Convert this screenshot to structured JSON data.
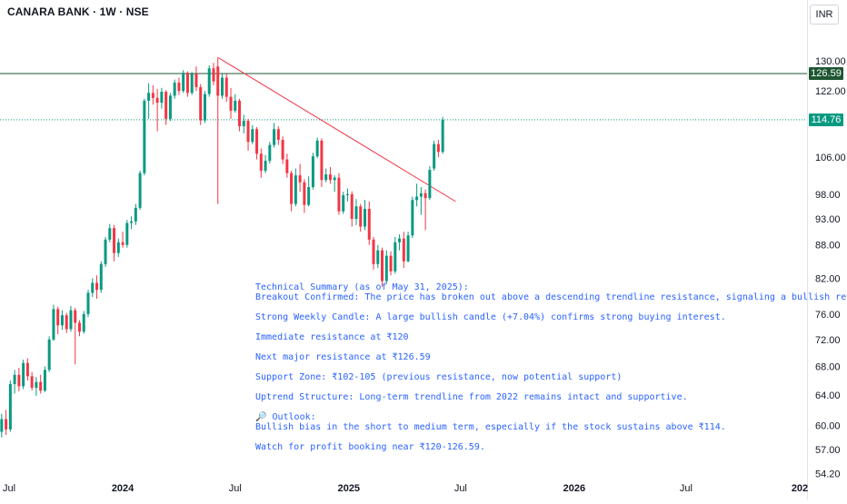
{
  "header": {
    "title": "CANARA BANK · 1W · NSE",
    "currency": "INR"
  },
  "price_tags": {
    "resistance": "126.59",
    "last": "114.76",
    "resistance_color": "#1e5631",
    "last_color": "#089981"
  },
  "colors": {
    "up": "#089981",
    "down": "#f23645",
    "trendline": "#f23645",
    "resistance_line": "#1e5631",
    "annotation_text": "#2962ff"
  },
  "annotation": {
    "title": "Technical Summary (as of May 31, 2025):",
    "breakout": "Breakout Confirmed: The price has broken out above a descending trendline resistance, signaling a bullish reversal.",
    "candle": "Strong Weekly Candle: A large bullish candle (+7.04%) confirms strong buying interest.",
    "immediate": "Immediate resistance at ₹120",
    "major": "Next major resistance at ₹126.59",
    "support": "Support Zone: ₹102-105 (previous resistance, now potential support)",
    "uptrend": "Uptrend Structure: Long-term trendline from 2022 remains intact and supportive.",
    "outlook_icon": "magnifier-icon",
    "outlook_title": "🔎 Outlook:",
    "outlook": "Bullish bias in the short to medium term, especially if the stock sustains above ₹114.",
    "watch": "Watch for profit booking near ₹120-126.59."
  },
  "chart_data": {
    "type": "candlestick",
    "y_scale": "log",
    "ylim": [
      53.5,
      137
    ],
    "y_ticks": [
      "130.00",
      "122.00",
      "106.00",
      "98.00",
      "93.00",
      "88.00",
      "82.00",
      "76.00",
      "72.00",
      "68.00",
      "64.00",
      "60.00",
      "57.00",
      "54.20"
    ],
    "x_ticks": [
      {
        "label": "Jul",
        "date": "2023-07-01"
      },
      {
        "label": "2024",
        "date": "2024-01-01"
      },
      {
        "label": "Jul",
        "date": "2024-07-01"
      },
      {
        "label": "2025",
        "date": "2025-01-01"
      },
      {
        "label": "Jul",
        "date": "2025-07-01"
      },
      {
        "label": "2026",
        "date": "2026-01-01"
      },
      {
        "label": "Jul",
        "date": "2026-07-01"
      },
      {
        "label": "202",
        "date": "2027-01-01"
      }
    ],
    "resistance_level": 126.59,
    "last_price": 114.76,
    "trendline": {
      "start": {
        "date": "2024-06-03",
        "price": 131.0
      },
      "end": {
        "date": "2025-06-23",
        "price": 96.5
      }
    },
    "candles": [
      {
        "d": "2023-06-19",
        "o": 59.2,
        "h": 61.5,
        "l": 58.5,
        "c": 60.8
      },
      {
        "d": "2023-06-26",
        "o": 60.8,
        "h": 62.0,
        "l": 58.8,
        "c": 59.5
      },
      {
        "d": "2023-07-03",
        "o": 59.5,
        "h": 66.0,
        "l": 59.2,
        "c": 65.5
      },
      {
        "d": "2023-07-10",
        "o": 65.5,
        "h": 67.5,
        "l": 64.2,
        "c": 66.8
      },
      {
        "d": "2023-07-17",
        "o": 66.8,
        "h": 67.8,
        "l": 64.5,
        "c": 65.2
      },
      {
        "d": "2023-07-24",
        "o": 65.2,
        "h": 69.0,
        "l": 64.8,
        "c": 68.5
      },
      {
        "d": "2023-07-31",
        "o": 68.5,
        "h": 69.2,
        "l": 66.0,
        "c": 66.6
      },
      {
        "d": "2023-08-07",
        "o": 66.6,
        "h": 67.2,
        "l": 64.6,
        "c": 65.0
      },
      {
        "d": "2023-08-14",
        "o": 65.0,
        "h": 66.5,
        "l": 63.9,
        "c": 65.8
      },
      {
        "d": "2023-08-21",
        "o": 65.8,
        "h": 66.8,
        "l": 64.2,
        "c": 64.6
      },
      {
        "d": "2023-08-28",
        "o": 64.6,
        "h": 68.0,
        "l": 64.4,
        "c": 67.5
      },
      {
        "d": "2023-09-04",
        "o": 67.5,
        "h": 72.5,
        "l": 67.2,
        "c": 72.0
      },
      {
        "d": "2023-09-11",
        "o": 72.0,
        "h": 77.5,
        "l": 71.8,
        "c": 76.8
      },
      {
        "d": "2023-09-18",
        "o": 76.8,
        "h": 77.2,
        "l": 72.8,
        "c": 74.2
      },
      {
        "d": "2023-09-25",
        "o": 74.2,
        "h": 76.6,
        "l": 73.5,
        "c": 75.8
      },
      {
        "d": "2023-10-02",
        "o": 75.8,
        "h": 76.2,
        "l": 73.0,
        "c": 73.6
      },
      {
        "d": "2023-10-09",
        "o": 73.6,
        "h": 77.3,
        "l": 73.2,
        "c": 76.6
      },
      {
        "d": "2023-10-16",
        "o": 76.6,
        "h": 77.0,
        "l": 68.3,
        "c": 74.6
      },
      {
        "d": "2023-10-23",
        "o": 74.6,
        "h": 75.0,
        "l": 72.5,
        "c": 73.2
      },
      {
        "d": "2023-10-30",
        "o": 73.2,
        "h": 76.5,
        "l": 72.9,
        "c": 76.0
      },
      {
        "d": "2023-11-06",
        "o": 76.0,
        "h": 80.0,
        "l": 75.5,
        "c": 79.5
      },
      {
        "d": "2023-11-13",
        "o": 79.5,
        "h": 82.0,
        "l": 78.8,
        "c": 81.2
      },
      {
        "d": "2023-11-20",
        "o": 81.2,
        "h": 82.5,
        "l": 78.5,
        "c": 80.0
      },
      {
        "d": "2023-11-27",
        "o": 80.0,
        "h": 85.0,
        "l": 79.5,
        "c": 84.5
      },
      {
        "d": "2023-12-04",
        "o": 84.5,
        "h": 89.5,
        "l": 84.0,
        "c": 89.0
      },
      {
        "d": "2023-12-11",
        "o": 89.0,
        "h": 92.0,
        "l": 88.5,
        "c": 91.2
      },
      {
        "d": "2023-12-18",
        "o": 91.2,
        "h": 91.8,
        "l": 85.0,
        "c": 86.5
      },
      {
        "d": "2023-12-25",
        "o": 86.5,
        "h": 89.2,
        "l": 85.8,
        "c": 88.5
      },
      {
        "d": "2024-01-01",
        "o": 88.5,
        "h": 90.5,
        "l": 87.5,
        "c": 88.0
      },
      {
        "d": "2024-01-08",
        "o": 88.0,
        "h": 92.8,
        "l": 87.5,
        "c": 92.2
      },
      {
        "d": "2024-01-15",
        "o": 92.2,
        "h": 93.5,
        "l": 91.0,
        "c": 92.5
      },
      {
        "d": "2024-01-22",
        "o": 92.5,
        "h": 96.0,
        "l": 91.8,
        "c": 95.2
      },
      {
        "d": "2024-01-29",
        "o": 95.2,
        "h": 103.0,
        "l": 94.8,
        "c": 102.5
      },
      {
        "d": "2024-02-05",
        "o": 102.5,
        "h": 120.0,
        "l": 102.0,
        "c": 119.5
      },
      {
        "d": "2024-02-12",
        "o": 119.5,
        "h": 124.0,
        "l": 115.0,
        "c": 121.5
      },
      {
        "d": "2024-02-19",
        "o": 121.5,
        "h": 123.5,
        "l": 118.5,
        "c": 120.2
      },
      {
        "d": "2024-02-26",
        "o": 120.2,
        "h": 122.5,
        "l": 112.0,
        "c": 119.0
      },
      {
        "d": "2024-03-04",
        "o": 119.0,
        "h": 122.8,
        "l": 117.5,
        "c": 121.8
      },
      {
        "d": "2024-03-11",
        "o": 121.8,
        "h": 122.2,
        "l": 113.5,
        "c": 115.0
      },
      {
        "d": "2024-03-18",
        "o": 115.0,
        "h": 121.5,
        "l": 114.5,
        "c": 120.8
      },
      {
        "d": "2024-03-25",
        "o": 120.8,
        "h": 125.0,
        "l": 120.0,
        "c": 124.2
      },
      {
        "d": "2024-04-01",
        "o": 124.2,
        "h": 125.5,
        "l": 121.0,
        "c": 122.0
      },
      {
        "d": "2024-04-08",
        "o": 122.0,
        "h": 127.5,
        "l": 121.5,
        "c": 126.8
      },
      {
        "d": "2024-04-15",
        "o": 126.8,
        "h": 127.2,
        "l": 120.5,
        "c": 121.5
      },
      {
        "d": "2024-04-22",
        "o": 121.5,
        "h": 127.0,
        "l": 121.0,
        "c": 126.5
      },
      {
        "d": "2024-04-29",
        "o": 126.5,
        "h": 128.5,
        "l": 122.0,
        "c": 123.0
      },
      {
        "d": "2024-05-06",
        "o": 123.0,
        "h": 123.8,
        "l": 113.5,
        "c": 114.6
      },
      {
        "d": "2024-05-13",
        "o": 114.6,
        "h": 122.0,
        "l": 114.0,
        "c": 121.2
      },
      {
        "d": "2024-05-20",
        "o": 121.2,
        "h": 128.8,
        "l": 120.5,
        "c": 128.0
      },
      {
        "d": "2024-05-27",
        "o": 128.0,
        "h": 129.5,
        "l": 123.5,
        "c": 124.5
      },
      {
        "d": "2024-06-03",
        "o": 128.5,
        "h": 131.0,
        "l": 96.0,
        "c": 120.8
      },
      {
        "d": "2024-06-10",
        "o": 120.8,
        "h": 126.5,
        "l": 120.0,
        "c": 125.5
      },
      {
        "d": "2024-06-17",
        "o": 125.5,
        "h": 126.5,
        "l": 119.2,
        "c": 120.5
      },
      {
        "d": "2024-06-24",
        "o": 120.5,
        "h": 122.8,
        "l": 115.0,
        "c": 117.0
      },
      {
        "d": "2024-07-01",
        "o": 117.0,
        "h": 121.2,
        "l": 116.5,
        "c": 119.5
      },
      {
        "d": "2024-07-08",
        "o": 119.5,
        "h": 120.0,
        "l": 112.0,
        "c": 113.2
      },
      {
        "d": "2024-07-15",
        "o": 113.2,
        "h": 116.0,
        "l": 111.5,
        "c": 114.5
      },
      {
        "d": "2024-07-22",
        "o": 114.5,
        "h": 115.0,
        "l": 107.5,
        "c": 109.5
      },
      {
        "d": "2024-07-29",
        "o": 109.5,
        "h": 113.5,
        "l": 109.0,
        "c": 112.5
      },
      {
        "d": "2024-08-05",
        "o": 112.5,
        "h": 113.0,
        "l": 105.5,
        "c": 106.8
      },
      {
        "d": "2024-08-12",
        "o": 106.8,
        "h": 108.0,
        "l": 101.5,
        "c": 103.0
      },
      {
        "d": "2024-08-19",
        "o": 103.0,
        "h": 106.5,
        "l": 102.5,
        "c": 105.2
      },
      {
        "d": "2024-08-26",
        "o": 105.2,
        "h": 109.5,
        "l": 104.6,
        "c": 108.8
      },
      {
        "d": "2024-09-02",
        "o": 108.8,
        "h": 114.0,
        "l": 108.2,
        "c": 112.5
      },
      {
        "d": "2024-09-09",
        "o": 112.5,
        "h": 113.2,
        "l": 108.8,
        "c": 110.0
      },
      {
        "d": "2024-09-16",
        "o": 110.0,
        "h": 110.8,
        "l": 104.5,
        "c": 105.5
      },
      {
        "d": "2024-09-23",
        "o": 105.5,
        "h": 106.8,
        "l": 101.5,
        "c": 102.5
      },
      {
        "d": "2024-09-30",
        "o": 102.5,
        "h": 103.0,
        "l": 94.5,
        "c": 96.0
      },
      {
        "d": "2024-10-07",
        "o": 96.0,
        "h": 103.5,
        "l": 95.5,
        "c": 102.0
      },
      {
        "d": "2024-10-14",
        "o": 102.0,
        "h": 104.5,
        "l": 98.5,
        "c": 100.5
      },
      {
        "d": "2024-10-21",
        "o": 100.5,
        "h": 101.2,
        "l": 94.2,
        "c": 95.8
      },
      {
        "d": "2024-10-28",
        "o": 95.8,
        "h": 101.8,
        "l": 95.5,
        "c": 99.5
      },
      {
        "d": "2024-11-04",
        "o": 99.5,
        "h": 107.0,
        "l": 99.0,
        "c": 106.2
      },
      {
        "d": "2024-11-11",
        "o": 106.2,
        "h": 110.5,
        "l": 105.8,
        "c": 109.8
      },
      {
        "d": "2024-11-18",
        "o": 109.8,
        "h": 110.3,
        "l": 99.5,
        "c": 101.0
      },
      {
        "d": "2024-11-25",
        "o": 101.0,
        "h": 103.5,
        "l": 100.5,
        "c": 102.2
      },
      {
        "d": "2024-12-02",
        "o": 102.2,
        "h": 103.8,
        "l": 100.2,
        "c": 101.0
      },
      {
        "d": "2024-12-09",
        "o": 101.0,
        "h": 102.0,
        "l": 98.5,
        "c": 101.5
      },
      {
        "d": "2024-12-16",
        "o": 101.5,
        "h": 102.5,
        "l": 93.8,
        "c": 94.5
      },
      {
        "d": "2024-12-23",
        "o": 94.5,
        "h": 98.5,
        "l": 94.0,
        "c": 97.8
      },
      {
        "d": "2024-12-30",
        "o": 97.8,
        "h": 99.2,
        "l": 96.5,
        "c": 98.0
      },
      {
        "d": "2025-01-06",
        "o": 98.0,
        "h": 98.6,
        "l": 91.5,
        "c": 93.0
      },
      {
        "d": "2025-01-13",
        "o": 93.0,
        "h": 97.0,
        "l": 91.8,
        "c": 95.5
      },
      {
        "d": "2025-01-20",
        "o": 95.5,
        "h": 96.0,
        "l": 90.5,
        "c": 91.5
      },
      {
        "d": "2025-01-27",
        "o": 91.5,
        "h": 96.8,
        "l": 90.8,
        "c": 95.0
      },
      {
        "d": "2025-02-03",
        "o": 95.0,
        "h": 96.5,
        "l": 88.0,
        "c": 89.0
      },
      {
        "d": "2025-02-10",
        "o": 89.0,
        "h": 89.5,
        "l": 83.5,
        "c": 84.5
      },
      {
        "d": "2025-02-17",
        "o": 84.5,
        "h": 88.0,
        "l": 83.8,
        "c": 87.0
      },
      {
        "d": "2025-02-24",
        "o": 87.0,
        "h": 87.5,
        "l": 80.5,
        "c": 81.5
      },
      {
        "d": "2025-03-03",
        "o": 81.5,
        "h": 87.0,
        "l": 81.0,
        "c": 86.0
      },
      {
        "d": "2025-03-10",
        "o": 86.0,
        "h": 86.8,
        "l": 82.5,
        "c": 83.2
      },
      {
        "d": "2025-03-17",
        "o": 83.2,
        "h": 89.5,
        "l": 82.8,
        "c": 88.5
      },
      {
        "d": "2025-03-24",
        "o": 88.5,
        "h": 90.0,
        "l": 87.0,
        "c": 89.2
      },
      {
        "d": "2025-03-31",
        "o": 89.2,
        "h": 90.5,
        "l": 83.8,
        "c": 85.0
      },
      {
        "d": "2025-04-07",
        "o": 85.0,
        "h": 90.5,
        "l": 84.8,
        "c": 89.8
      },
      {
        "d": "2025-04-14",
        "o": 89.8,
        "h": 97.5,
        "l": 89.3,
        "c": 96.8
      },
      {
        "d": "2025-04-21",
        "o": 96.8,
        "h": 100.2,
        "l": 95.5,
        "c": 97.5
      },
      {
        "d": "2025-04-28",
        "o": 97.5,
        "h": 99.5,
        "l": 93.8,
        "c": 98.2
      },
      {
        "d": "2025-05-05",
        "o": 98.2,
        "h": 99.0,
        "l": 90.8,
        "c": 97.2
      },
      {
        "d": "2025-05-12",
        "o": 97.2,
        "h": 104.0,
        "l": 96.8,
        "c": 103.2
      },
      {
        "d": "2025-05-19",
        "o": 103.5,
        "h": 109.8,
        "l": 103.0,
        "c": 109.0
      },
      {
        "d": "2025-05-26",
        "o": 109.0,
        "h": 110.0,
        "l": 106.0,
        "c": 107.2
      },
      {
        "d": "2025-06-02",
        "o": 107.2,
        "h": 115.5,
        "l": 106.8,
        "c": 114.76
      }
    ]
  }
}
